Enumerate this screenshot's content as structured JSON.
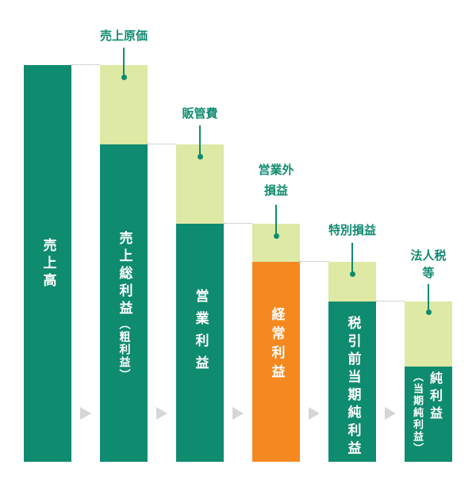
{
  "colors": {
    "profit_bar": "#0f8b6f",
    "deduction_segment": "#dde9a4",
    "highlight_bar": "#f5891f",
    "label_text": "#0f8b6f",
    "bar_text": "#ffffff",
    "guide_line": "#aaaaaa",
    "arrow": "#d6d6d6"
  },
  "arrow_icon": "triangle-right-icon",
  "bars": [
    {
      "label": "売上高"
    },
    {
      "label": "売上総利益",
      "sub_label": "（粗利益）",
      "deduction_lines": [
        "売上原価"
      ]
    },
    {
      "label": "営業利益",
      "deduction_lines": [
        "販管費"
      ]
    },
    {
      "label": "経常利益",
      "deduction_lines": [
        "営業外",
        "損益"
      ]
    },
    {
      "label": "税引前当期純利益",
      "deduction_lines": [
        "特別損益"
      ]
    },
    {
      "label": "純利益",
      "sub_label": "（当期純利益）",
      "deduction_lines": [
        "法人税",
        "等"
      ]
    }
  ]
}
